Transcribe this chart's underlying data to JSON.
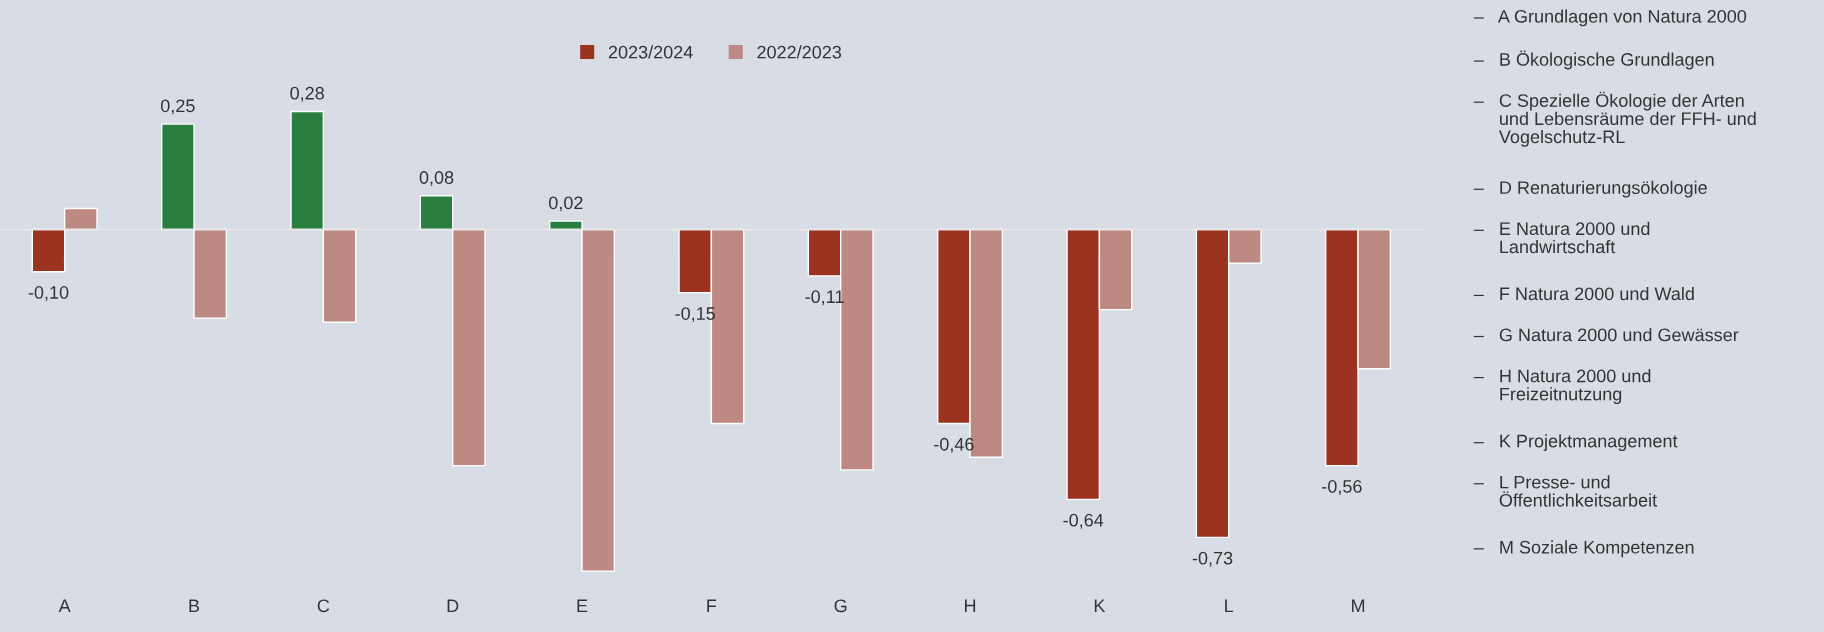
{
  "chart_data": {
    "type": "bar",
    "categories": [
      "A",
      "B",
      "C",
      "D",
      "E",
      "F",
      "G",
      "H",
      "K",
      "L",
      "M"
    ],
    "series": [
      {
        "name": "2023/2024",
        "color": "#9c3320",
        "colors": [
          "#9c3320",
          "#2a7f40",
          "#2a7f40",
          "#2a7f40",
          "#2a7f40",
          "#9c3320",
          "#9c3320",
          "#9c3320",
          "#9c3320",
          "#9c3320",
          "#9c3320"
        ],
        "values": [
          -0.1,
          0.25,
          0.28,
          0.08,
          0.02,
          -0.15,
          -0.11,
          -0.46,
          -0.64,
          -0.73,
          -0.56
        ],
        "value_labels": [
          "-0,10",
          "0,25",
          "0,28",
          "0,08",
          "0,02",
          "-0,15",
          "-0,11",
          "-0,46",
          "-0,64",
          "-0,73",
          "-0,56"
        ]
      },
      {
        "name": "2022/2023",
        "color": "#bc8a82",
        "values": [
          0.05,
          -0.21,
          -0.22,
          -0.56,
          -0.81,
          -0.46,
          -0.57,
          -0.54,
          -0.19,
          -0.08,
          -0.33
        ]
      }
    ],
    "legend": "top",
    "grid": false,
    "annotations": [
      "–   A Grundlagen von Natura 2000",
      "–   B Ökologische Grundlagen",
      "–   C Spezielle Ökologie der Arten\n     und Lebensräume der FFH- und\n     Vogelschutz-RL",
      "–   D Renaturierungsökologie",
      "–   E Natura 2000 und\n     Landwirtschaft",
      "–   F Natura 2000 und Wald",
      "–   G Natura 2000 und Gewässer",
      "–   H Natura 2000 und\n     Freizeitnutzung",
      "–   K Projektmanagement",
      "–   L Presse- und\n     Öffentlichkeitsarbeit",
      "–   M Soziale Kompetenzen"
    ]
  }
}
